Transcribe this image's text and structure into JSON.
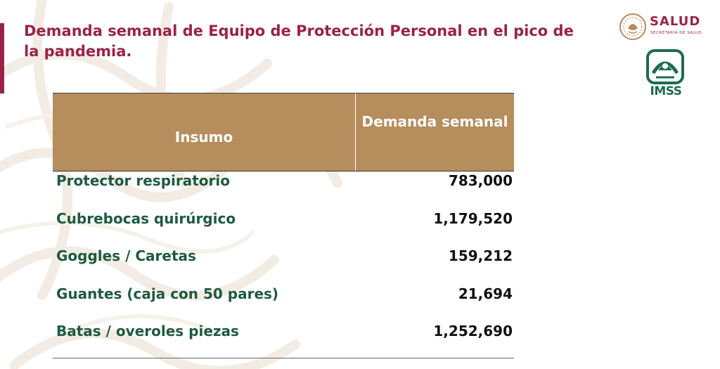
{
  "title": "Demanda semanal de Equipo de Protección Personal en el pico de la pandemia.",
  "logos": {
    "salud": {
      "word": "SALUD",
      "subtitle": "SECRETARÍA DE SALUD",
      "icon": "mexico-seal-icon"
    },
    "imss": {
      "word": "IMSS",
      "icon": "imss-eagle-icon"
    }
  },
  "table": {
    "headers": [
      "Insumo",
      "Demanda semanal"
    ],
    "rows": [
      {
        "insumo": "Protector respiratorio",
        "demanda": "783,000"
      },
      {
        "insumo": "Cubrebocas quirúrgico",
        "demanda": "1,179,520"
      },
      {
        "insumo": "Goggles / Caretas",
        "demanda": "159,212"
      },
      {
        "insumo": "Guantes (caja con 50 pares)",
        "demanda": "21,694"
      },
      {
        "insumo": "Batas / overoles piezas",
        "demanda": "1,252,690"
      }
    ]
  },
  "colors": {
    "accent": "#9b2247",
    "header_bg": "#b68d5d",
    "row_text": "#1e5a40",
    "imss_green": "#1f6b4f"
  }
}
